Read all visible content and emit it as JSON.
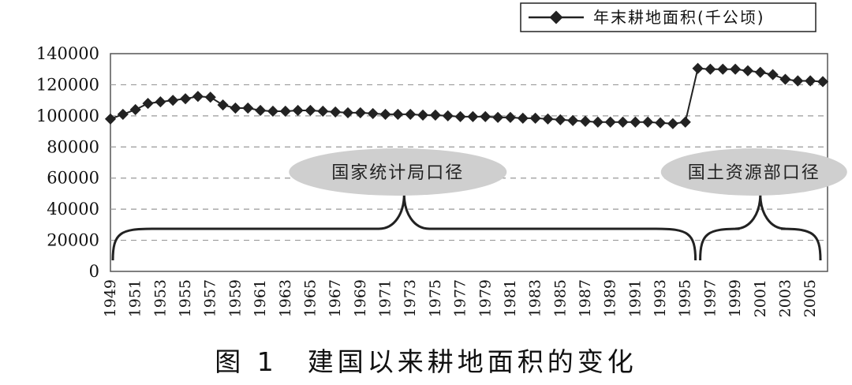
{
  "chart_data": {
    "type": "line",
    "title": "",
    "xlabel": "",
    "ylabel": "",
    "ylim": [
      0,
      140000
    ],
    "yticks": [
      0,
      20000,
      40000,
      60000,
      80000,
      100000,
      120000,
      140000
    ],
    "x_tick_labels": [
      "1949",
      "1951",
      "1953",
      "1955",
      "1957",
      "1959",
      "1961",
      "1963",
      "1965",
      "1967",
      "1969",
      "1971",
      "1973",
      "1975",
      "1977",
      "1979",
      "1981",
      "1983",
      "1985",
      "1987",
      "1989",
      "1991",
      "1993",
      "1995",
      "1997",
      "1999",
      "2001",
      "2003",
      "2005"
    ],
    "grid": "horizontal-dashed",
    "legend_position": "top-right",
    "series": [
      {
        "name": "年末耕地面积(千公顷)",
        "color": "#222222",
        "marker": "diamond",
        "x": [
          1949,
          1950,
          1951,
          1952,
          1953,
          1954,
          1955,
          1956,
          1957,
          1958,
          1959,
          1960,
          1961,
          1962,
          1963,
          1964,
          1965,
          1966,
          1967,
          1968,
          1969,
          1970,
          1971,
          1972,
          1973,
          1974,
          1975,
          1976,
          1977,
          1978,
          1979,
          1980,
          1981,
          1982,
          1983,
          1984,
          1985,
          1986,
          1987,
          1988,
          1989,
          1990,
          1991,
          1992,
          1993,
          1994,
          1995,
          1996,
          1997,
          1998,
          1999,
          2000,
          2001,
          2002,
          2003,
          2004,
          2005,
          2006
        ],
        "values": [
          98000,
          101000,
          104000,
          108000,
          109000,
          110000,
          111000,
          112500,
          112000,
          107000,
          105000,
          105000,
          103500,
          103000,
          103000,
          103500,
          103500,
          103000,
          102500,
          102000,
          102000,
          101500,
          101000,
          101000,
          101000,
          100500,
          100500,
          100000,
          99500,
          99500,
          99500,
          99000,
          99000,
          98500,
          98500,
          98000,
          97500,
          97000,
          96500,
          96000,
          96000,
          96000,
          96000,
          96000,
          95500,
          95000,
          96000,
          130500,
          130000,
          130000,
          130000,
          129000,
          128000,
          126500,
          123500,
          122500,
          122500,
          122000
        ]
      }
    ],
    "annotations": [
      {
        "text": "国家统计局口径",
        "x_range": [
          1949,
          1996
        ]
      },
      {
        "text": "国土资源部口径",
        "x_range": [
          1996,
          2006
        ]
      }
    ]
  },
  "caption": "图 1　建国以来耕地面积的变化"
}
